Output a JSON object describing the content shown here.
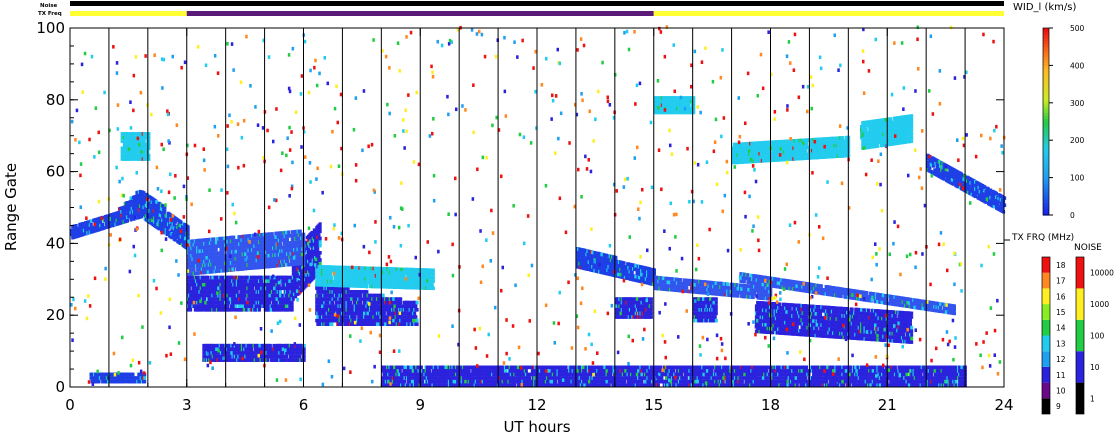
{
  "top_bars": {
    "noise_label": "Noise",
    "txfreq_label": "TX Freq",
    "txfreq_segments": [
      {
        "from": 0,
        "to": 3,
        "color": "#ffff33"
      },
      {
        "from": 3,
        "to": 15,
        "color": "#5a1a7a"
      },
      {
        "from": 15,
        "to": 24,
        "color": "#ffff33"
      }
    ],
    "noise_color": "#000000"
  },
  "chart_data": {
    "type": "heatmap",
    "xlabel": "UT hours",
    "ylabel": "Range Gate",
    "xlim": [
      0,
      24
    ],
    "ylim": [
      0,
      100
    ],
    "x_ticks": [
      "0",
      "3",
      "6",
      "9",
      "12",
      "15",
      "18",
      "21",
      "24"
    ],
    "x_tick_values": [
      0,
      3,
      6,
      9,
      12,
      15,
      18,
      21,
      24
    ],
    "y_ticks": [
      "0",
      "20",
      "40",
      "60",
      "80",
      "100"
    ],
    "y_tick_values": [
      0,
      20,
      40,
      60,
      80,
      100
    ],
    "hour_grid": true,
    "echo_bands": [
      {
        "t0": 0.0,
        "t1": 1.2,
        "g0": 41,
        "g1": 44,
        "g0e": 45,
        "g1e": 49,
        "color": "#1f3fe6"
      },
      {
        "t0": 1.2,
        "t1": 1.8,
        "g0": 45,
        "g1": 49,
        "g0e": 47,
        "g1e": 55,
        "color": "#1f3fe6"
      },
      {
        "t0": 1.8,
        "t1": 3.0,
        "g0": 47,
        "g1": 55,
        "g0e": 38,
        "g1e": 44,
        "color": "#1f3fe6"
      },
      {
        "t0": 1.3,
        "t1": 2.0,
        "g0": 63,
        "g1": 71,
        "g0e": 63,
        "g1e": 70,
        "color": "#22ccee"
      },
      {
        "t0": 0.5,
        "t1": 1.9,
        "g0": 1,
        "g1": 4,
        "g0e": 1,
        "g1e": 4,
        "color": "#1f3fe6"
      },
      {
        "t0": 3.0,
        "t1": 5.7,
        "g0": 21,
        "g1": 31,
        "g0e": 21,
        "g1e": 31,
        "color": "#2a22dd"
      },
      {
        "t0": 5.7,
        "t1": 6.4,
        "g0": 24,
        "g1": 36,
        "g0e": 32,
        "g1e": 46,
        "color": "#2a22dd"
      },
      {
        "t0": 3.0,
        "t1": 6.0,
        "g0": 31,
        "g1": 40,
        "g0e": 34,
        "g1e": 44,
        "color": "#3355ee"
      },
      {
        "t0": 3.4,
        "t1": 6.0,
        "g0": 7,
        "g1": 12,
        "g0e": 7,
        "g1e": 12,
        "color": "#2a22dd"
      },
      {
        "t0": 6.3,
        "t1": 8.9,
        "g0": 17,
        "g1": 29,
        "g0e": 17,
        "g1e": 23,
        "color": "#2a22dd"
      },
      {
        "t0": 6.3,
        "t1": 9.3,
        "g0": 28,
        "g1": 34,
        "g0e": 27,
        "g1e": 32,
        "color": "#22ccee"
      },
      {
        "t0": 13.0,
        "t1": 15.0,
        "g0": 33,
        "g1": 39,
        "g0e": 28,
        "g1e": 32,
        "color": "#1f3fe6"
      },
      {
        "t0": 14.0,
        "t1": 14.9,
        "g0": 19,
        "g1": 25,
        "g0e": 19,
        "g1e": 24,
        "color": "#2a22dd"
      },
      {
        "t0": 15.0,
        "t1": 18.0,
        "g0": 27,
        "g1": 31,
        "g0e": 24,
        "g1e": 28,
        "color": "#3355ee"
      },
      {
        "t0": 16.0,
        "t1": 16.6,
        "g0": 18,
        "g1": 25,
        "g0e": 18,
        "g1e": 24,
        "color": "#2a22dd"
      },
      {
        "t0": 17.6,
        "t1": 21.6,
        "g0": 15,
        "g1": 23,
        "g0e": 12,
        "g1e": 21,
        "color": "#2a22dd"
      },
      {
        "t0": 17.2,
        "t1": 22.7,
        "g0": 29,
        "g1": 32,
        "g0e": 20,
        "g1e": 23,
        "color": "#3355ee"
      },
      {
        "t0": 22.0,
        "t1": 24.0,
        "g0": 60,
        "g1": 65,
        "g0e": 48,
        "g1e": 53,
        "color": "#1f3fe6"
      },
      {
        "t0": 17.0,
        "t1": 20.0,
        "g0": 62,
        "g1": 67,
        "g0e": 64,
        "g1e": 70,
        "color": "#22ccee"
      },
      {
        "t0": 20.3,
        "t1": 21.6,
        "g0": 66,
        "g1": 74,
        "g0e": 68,
        "g1e": 76,
        "color": "#22ccee"
      },
      {
        "t0": 15.0,
        "t1": 16.0,
        "g0": 76,
        "g1": 81,
        "g0e": 76,
        "g1e": 81,
        "color": "#22ccee"
      },
      {
        "t0": 8.0,
        "t1": 23.0,
        "g0": 0,
        "g1": 6,
        "g0e": 0,
        "g1e": 6,
        "color": "#2a22dd"
      }
    ],
    "width_scale": {
      "title": "WID_l (km/s)",
      "range": [
        0,
        500
      ],
      "ticks": [
        "0",
        "100",
        "200",
        "300",
        "400",
        "500"
      ]
    },
    "txfreq_scale": {
      "title": "TX FRQ (MHz)",
      "ticks": [
        "9",
        "10",
        "11",
        "12",
        "13",
        "14",
        "15",
        "16",
        "17",
        "18"
      ],
      "colors": [
        "#000000",
        "#6a0a88",
        "#2a22dd",
        "#1f9ff0",
        "#22ccee",
        "#22cc44",
        "#88ee22",
        "#ffee22",
        "#ff8822",
        "#ee1111"
      ]
    },
    "noise_scale": {
      "title": "NOISE",
      "ticks": [
        "1",
        "10",
        "100",
        "1000",
        "10000"
      ],
      "colors": [
        "#000000",
        "#2a22dd",
        "#22cc44",
        "#ffee22",
        "#ee1111"
      ]
    }
  }
}
